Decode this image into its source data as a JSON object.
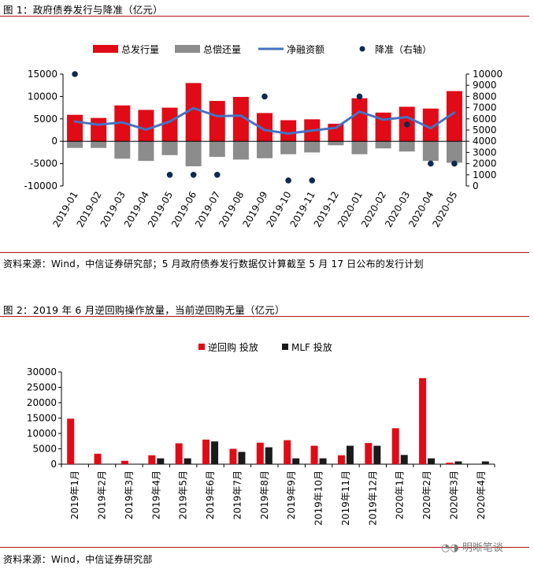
{
  "fig1": {
    "title": "图 1：政府债券发行与降准（亿元）",
    "source": "资料来源：Wind，中信证券研究部；5 月政府债券发行数据仅计算截至 5 月 17 日公布的发行计划",
    "chart_data": {
      "type": "bar",
      "categories": [
        "2019-01",
        "2019-02",
        "2019-03",
        "2019-04",
        "2019-05",
        "2019-06",
        "2019-07",
        "2019-08",
        "2019-09",
        "2019-10",
        "2019-11",
        "2019-12",
        "2020-01",
        "2020-02",
        "2020-03",
        "2020-04",
        "2020-05"
      ],
      "series": [
        {
          "name": "总发行量",
          "type": "bar",
          "axis": "left",
          "color": "#e00b16",
          "values": [
            5900,
            5200,
            8000,
            7000,
            7500,
            13000,
            9000,
            9900,
            6300,
            4700,
            4900,
            3900,
            9600,
            6400,
            7700,
            7300,
            11200
          ]
        },
        {
          "name": "总偿还量",
          "type": "bar",
          "axis": "left",
          "color": "#8c8c8c",
          "values": [
            -1500,
            -1500,
            -3900,
            -4400,
            -3100,
            -5600,
            -3500,
            -4100,
            -3800,
            -2900,
            -2500,
            -900,
            -2900,
            -1600,
            -2300,
            -4400,
            -4800
          ]
        },
        {
          "name": "净融资额",
          "type": "line",
          "axis": "left",
          "color": "#4472c4",
          "values": [
            4400,
            3700,
            4200,
            2600,
            4400,
            7400,
            5600,
            5700,
            2500,
            1700,
            2400,
            3000,
            6600,
            4800,
            5400,
            2900,
            6400
          ]
        },
        {
          "name": "降准（右轴）",
          "type": "scatter",
          "axis": "right",
          "color": "#0e2a52",
          "values": [
            10000,
            null,
            null,
            null,
            1000,
            1000,
            1000,
            null,
            8000,
            500,
            500,
            null,
            8000,
            null,
            5500,
            2000,
            2000
          ]
        }
      ],
      "ylim_left": [
        -10000,
        15000
      ],
      "yticks_left": [
        -10000,
        -5000,
        0,
        5000,
        10000,
        15000
      ],
      "ylim_right": [
        0,
        10000
      ],
      "yticks_right": [
        0,
        1000,
        2000,
        3000,
        4000,
        5000,
        6000,
        7000,
        8000,
        9000,
        10000
      ],
      "legend_position": "top",
      "grid": false
    }
  },
  "fig2": {
    "title": "图 2：2019 年 6 月逆回购操作放量，当前逆回购无量（亿元）",
    "source": "资料来源：Wind，中信证券研究部",
    "chart_data": {
      "type": "bar",
      "categories": [
        "2019年1月",
        "2019年2月",
        "2019年3月",
        "2019年4月",
        "2019年5月",
        "2019年6月",
        "2019年7月",
        "2019年8月",
        "2019年9月",
        "2019年10月",
        "2019年11月",
        "2019年12月",
        "2020年1月",
        "2020年2月",
        "2020年3月",
        "2020年4月"
      ],
      "series": [
        {
          "name": "逆回购 投放",
          "color": "#e00b16",
          "values": [
            14800,
            3400,
            1100,
            2900,
            6800,
            8000,
            5000,
            7000,
            7800,
            6000,
            2900,
            6900,
            11700,
            28000,
            500,
            0
          ]
        },
        {
          "name": "MLF 投放",
          "color": "#1a1a1a",
          "values": [
            0,
            0,
            0,
            1900,
            1900,
            7400,
            4000,
            5500,
            1900,
            1900,
            6000,
            6000,
            3000,
            1900,
            900,
            900
          ]
        }
      ],
      "ylim": [
        0,
        30000
      ],
      "yticks": [
        0,
        5000,
        10000,
        15000,
        20000,
        25000,
        30000
      ],
      "legend_position": "top",
      "grid": false
    }
  },
  "watermark": "明晰笔谈"
}
